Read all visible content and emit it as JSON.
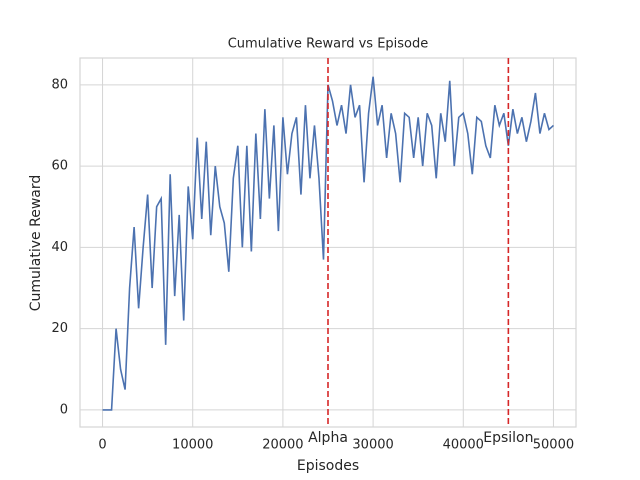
{
  "chart_data": {
    "type": "line",
    "title": "Cumulative Reward vs Episode",
    "x_label": "Episodes",
    "y_label": "Cumulative Reward",
    "x": [
      0,
      500,
      1000,
      1500,
      2000,
      2500,
      3000,
      3500,
      4000,
      4500,
      5000,
      5500,
      6000,
      6500,
      7000,
      7500,
      8000,
      8500,
      9000,
      9500,
      10000,
      10500,
      11000,
      11500,
      12000,
      12500,
      13000,
      13500,
      14000,
      14500,
      15000,
      15500,
      16000,
      16500,
      17000,
      17500,
      18000,
      18500,
      19000,
      19500,
      20000,
      20500,
      21000,
      21500,
      22000,
      22500,
      23000,
      23500,
      24000,
      24500,
      25000,
      25500,
      26000,
      26500,
      27000,
      27500,
      28000,
      28500,
      29000,
      29500,
      30000,
      30500,
      31000,
      31500,
      32000,
      32500,
      33000,
      33500,
      34000,
      34500,
      35000,
      35500,
      36000,
      36500,
      37000,
      37500,
      38000,
      38500,
      39000,
      39500,
      40000,
      40500,
      41000,
      41500,
      42000,
      42500,
      43000,
      43500,
      44000,
      44500,
      45000,
      45500,
      46000,
      46500,
      47000,
      47500,
      48000,
      48500,
      49000,
      49500,
      50000
    ],
    "values": [
      0,
      0,
      0,
      20,
      10,
      5,
      30,
      45,
      25,
      40,
      53,
      30,
      50,
      52,
      16,
      58,
      28,
      48,
      22,
      55,
      42,
      67,
      47,
      66,
      43,
      60,
      50,
      46,
      34,
      57,
      65,
      40,
      65,
      39,
      68,
      47,
      74,
      52,
      70,
      44,
      72,
      58,
      68,
      72,
      53,
      75,
      57,
      70,
      57,
      37,
      80,
      76,
      70,
      75,
      68,
      80,
      72,
      75,
      56,
      73,
      82,
      70,
      75,
      62,
      73,
      68,
      56,
      73,
      72,
      62,
      72,
      60,
      73,
      70,
      57,
      73,
      66,
      81,
      60,
      72,
      73,
      68,
      58,
      72,
      71,
      65,
      62,
      75,
      70,
      73,
      65,
      74,
      68,
      72,
      66,
      71,
      78,
      68,
      73,
      69,
      70
    ],
    "color": "#4c72b0",
    "xlim": [
      -2500,
      52500
    ],
    "ylim": [
      -4.2,
      86.6
    ],
    "xticks": [
      0,
      10000,
      20000,
      30000,
      40000,
      50000
    ],
    "yticks": [
      0,
      20,
      40,
      60,
      80
    ],
    "grid": true,
    "vlines": [
      {
        "x": 25000,
        "label": "Alpha",
        "color": "#d62728"
      },
      {
        "x": 45000,
        "label": "Epsilon",
        "color": "#d62728"
      }
    ]
  }
}
